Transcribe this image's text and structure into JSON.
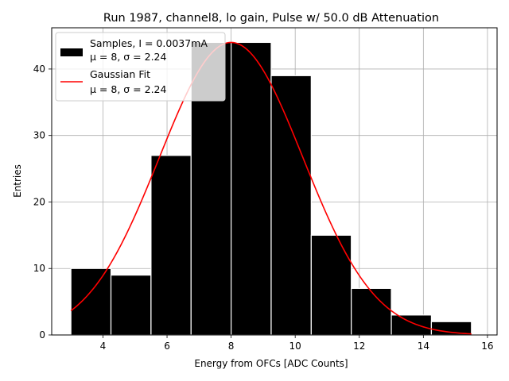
{
  "chart_data": {
    "type": "bar",
    "title": "Run 1987, channel8, lo gain, Pulse w/ 50.0 dB Attenuation",
    "xlabel": "Energy from OFCs [ADC Counts]",
    "ylabel": "Entries",
    "xlim": [
      2.4,
      16.3
    ],
    "ylim": [
      0,
      46.2
    ],
    "xticks": [
      4,
      6,
      8,
      10,
      12,
      14,
      16
    ],
    "yticks": [
      0,
      10,
      20,
      30,
      40
    ],
    "grid": true,
    "legend_position": "upper-left",
    "histogram": {
      "name": "Samples",
      "bin_edges": [
        3.0,
        4.25,
        5.5,
        6.75,
        8.0,
        9.25,
        10.5,
        11.75,
        13.0,
        14.25,
        15.5
      ],
      "counts": [
        10,
        9,
        27,
        44,
        44,
        39,
        15,
        7,
        3,
        2
      ],
      "color": "#000000",
      "edgecolor": "#ffffff"
    },
    "fit": {
      "name": "Gaussian Fit",
      "type": "line",
      "mu": 8,
      "sigma": 2.24,
      "amplitude": 44,
      "x_range": [
        3.0,
        15.5
      ],
      "color": "#ff0000"
    },
    "legend": [
      {
        "line1": "Samples, I = 0.0037mA",
        "line2": "μ = 8, σ = 2.24",
        "kind": "patch",
        "color": "#000000"
      },
      {
        "line1": "Gaussian Fit",
        "line2": "μ = 8, σ = 2.24",
        "kind": "line",
        "color": "#ff0000"
      }
    ]
  }
}
